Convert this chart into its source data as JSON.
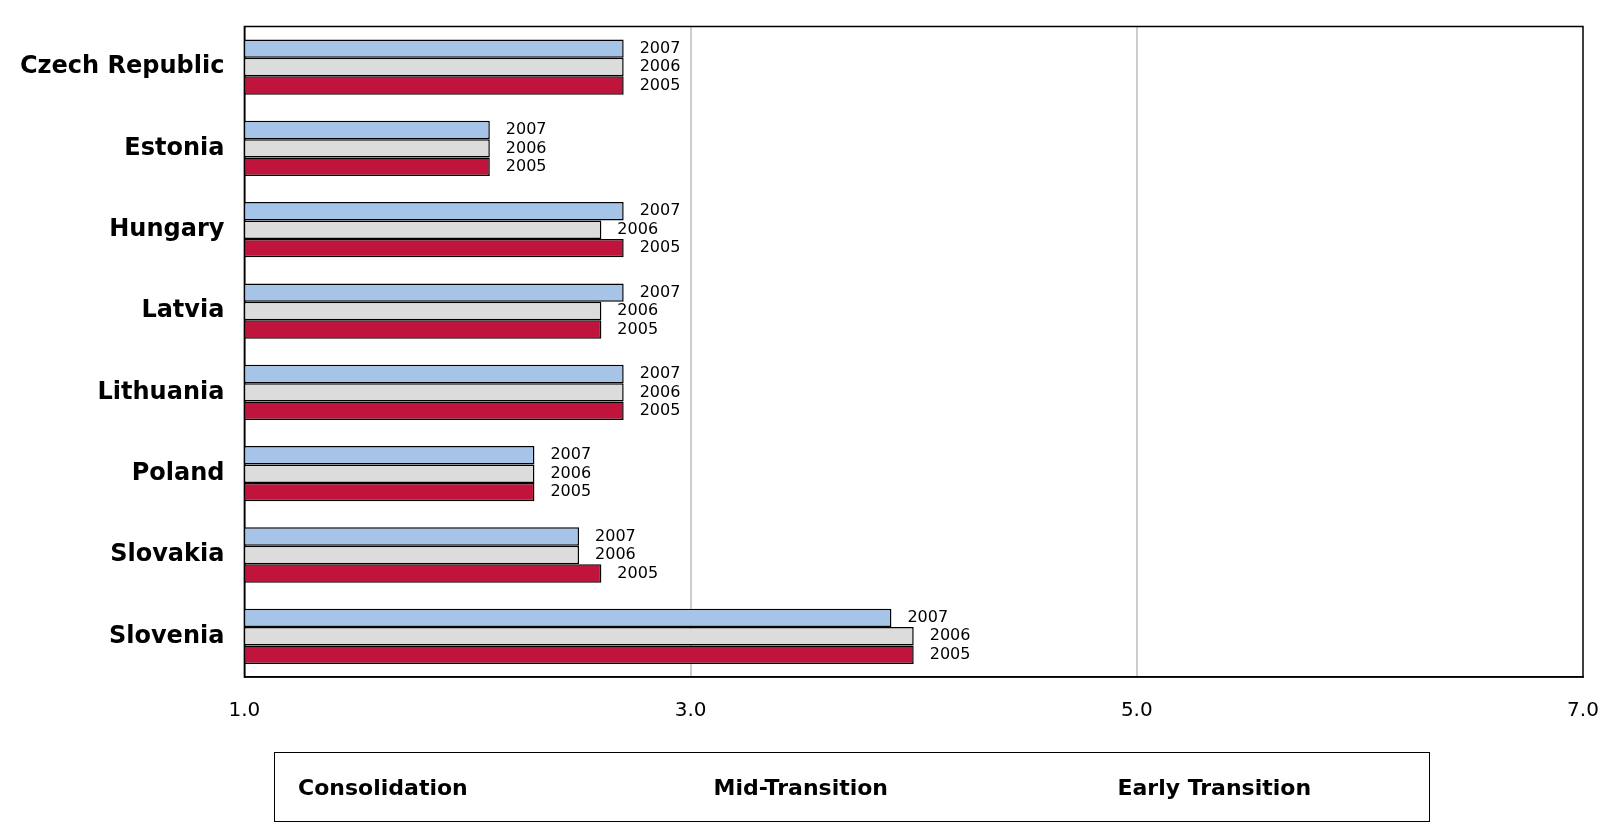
{
  "chart_data": {
    "type": "bar",
    "orientation": "horizontal",
    "categories": [
      "Czech Republic",
      "Estonia",
      "Hungary",
      "Latvia",
      "Lithuania",
      "Poland",
      "Slovakia",
      "Slovenia"
    ],
    "series": [
      {
        "name": "2007",
        "color": "#a6c4e8",
        "values": [
          2.7,
          2.1,
          2.7,
          2.7,
          2.7,
          2.3,
          2.5,
          3.9
        ]
      },
      {
        "name": "2006",
        "color": "#dcdcdc",
        "values": [
          2.7,
          2.1,
          2.6,
          2.6,
          2.7,
          2.3,
          2.5,
          4.0
        ]
      },
      {
        "name": "2005",
        "color": "#c0143c",
        "values": [
          2.7,
          2.1,
          2.7,
          2.6,
          2.7,
          2.3,
          2.6,
          4.0
        ]
      }
    ],
    "xlim": [
      1,
      7
    ],
    "xticks": [
      {
        "value": 1,
        "label": "1.0"
      },
      {
        "value": 3,
        "label": "3.0"
      },
      {
        "value": 5,
        "label": "5.0"
      },
      {
        "value": 7,
        "label": "7.0"
      }
    ],
    "grid": "x",
    "legend": false,
    "annotations": [
      "Consolidation",
      "Mid-Transition",
      "Early Transition"
    ]
  }
}
